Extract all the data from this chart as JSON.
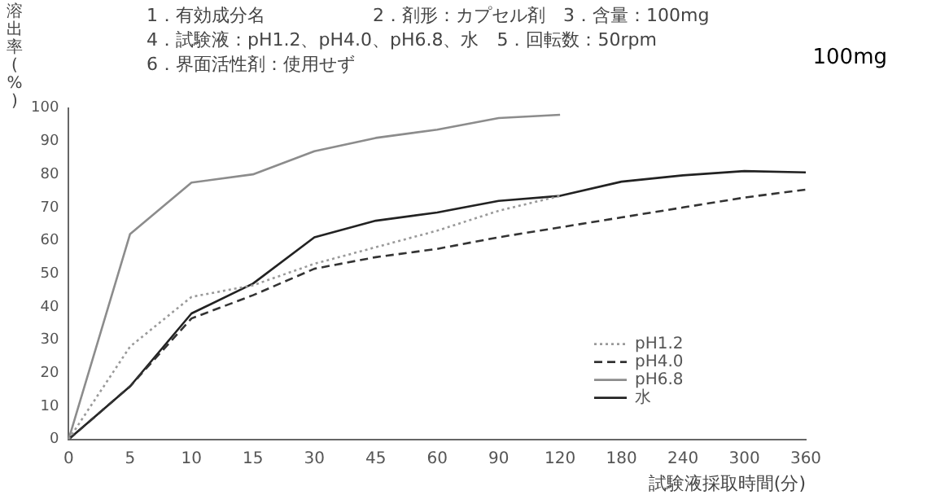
{
  "chart_data": {
    "type": "line",
    "ylabel": "溶出率(%)",
    "xlabel": "試験液採取時間(分)",
    "annotations": [
      "1．有効成分名　　　　　　2．剤形：カプセル剤　3．含量：100mg",
      "4．試験液：pH1.2、pH4.0、pH6.8、水　5．回転数：50rpm",
      "6．界面活性剤：使用せず",
      "100mg"
    ],
    "categories": [
      "0",
      "5",
      "10",
      "15",
      "30",
      "45",
      "60",
      "90",
      "120",
      "180",
      "240",
      "300",
      "360"
    ],
    "ylim": [
      0,
      100
    ],
    "yticks": [
      0,
      10,
      20,
      30,
      40,
      50,
      60,
      70,
      80,
      90,
      100
    ],
    "grid": false,
    "legend": "bottom right",
    "marker": "none",
    "series": [
      {
        "name": "pH1.2",
        "color": "#9a9a9a",
        "line_style": "dotted",
        "values": [
          0,
          28,
          43,
          46.5,
          53,
          58,
          63,
          69,
          73.5,
          null,
          null,
          null,
          null
        ]
      },
      {
        "name": "pH4.0",
        "color": "#333333",
        "line_style": "dashed",
        "values": [
          0,
          16,
          36.5,
          43.5,
          51.5,
          55,
          57.5,
          61,
          64,
          67,
          70,
          73,
          75.4
        ]
      },
      {
        "name": "pH6.8",
        "color": "#8c8c8c",
        "line_style": "solid",
        "values": [
          0,
          62,
          77.5,
          80,
          87,
          91,
          93.5,
          97,
          98,
          null,
          null,
          null,
          null
        ]
      },
      {
        "name": "水",
        "color": "#222222",
        "line_style": "solid",
        "values": [
          0,
          16,
          38,
          47,
          61,
          66,
          68.5,
          72,
          73.5,
          77.8,
          79.7,
          81,
          80.6
        ]
      }
    ]
  }
}
